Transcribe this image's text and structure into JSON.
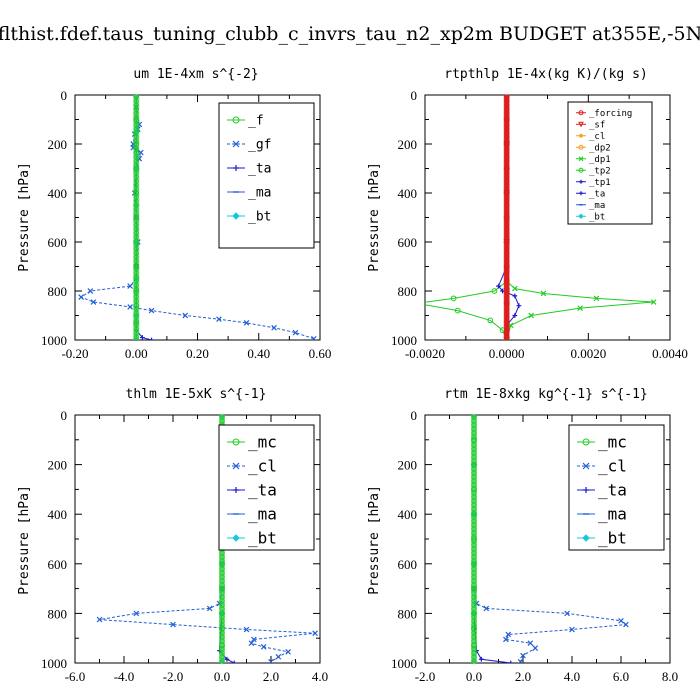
{
  "figure_title": "flthist.fdef.taus_tuning_clubb_c_invrs_tau_n2_xp2m  BUDGET at355E,-5N",
  "colors": {
    "green": "#22cc22",
    "blue": "#1f5fd6",
    "navy": "#1a1acc",
    "cyan": "#16c8d8",
    "red": "#e01a1a",
    "orange": "#f0a020"
  },
  "chart_data": [
    {
      "type": "line",
      "title": "um   1E-4xm s^{-2}",
      "ylabel": "Pressure [hPa]",
      "xlim": [
        -0.2,
        0.6
      ],
      "ylim": [
        1000,
        0
      ],
      "xticks": [
        "-0.20",
        "0.00",
        "0.20",
        "0.40",
        "0.60"
      ],
      "xtick_values": [
        -0.2,
        0.0,
        0.2,
        0.4,
        0.6
      ],
      "yticks": [
        "0",
        "200",
        "400",
        "600",
        "800",
        "1000"
      ],
      "legend_position": "top-right",
      "series": [
        {
          "name": "_f",
          "color": "#22cc22",
          "marker": "circle",
          "x": [
            0,
            0,
            0,
            0,
            0,
            0,
            0,
            0,
            0,
            0,
            0,
            0
          ],
          "y": [
            0,
            100,
            200,
            300,
            400,
            500,
            600,
            700,
            800,
            860,
            930,
            1000
          ]
        },
        {
          "name": "_gf",
          "color": "#1f5fd6",
          "marker": "x",
          "style": "dash",
          "x": [
            0.0,
            0.0,
            0.01,
            0.005,
            -0.005,
            -0.01,
            -0.01,
            0.0,
            0.015,
            0.01,
            0.0,
            -0.005,
            0.0,
            0.005,
            0.0,
            0.0,
            -0.02,
            -0.15,
            -0.18,
            -0.14,
            -0.02,
            0.05,
            0.16,
            0.27,
            0.36,
            0.45,
            0.52,
            0.58
          ],
          "y": [
            0,
            50,
            120,
            140,
            160,
            200,
            215,
            225,
            235,
            260,
            300,
            400,
            500,
            600,
            700,
            750,
            780,
            800,
            825,
            845,
            865,
            880,
            900,
            915,
            930,
            950,
            970,
            995
          ]
        },
        {
          "name": "_ta",
          "color": "#1a1acc",
          "marker": "plus",
          "x": [
            0,
            0,
            0,
            0,
            0,
            0,
            0,
            0,
            0.02,
            0.05
          ],
          "y": [
            0,
            150,
            300,
            450,
            600,
            750,
            900,
            960,
            990,
            1000
          ]
        },
        {
          "name": "_ma",
          "color": "#1f5fd6",
          "marker": "dash",
          "x": [
            0,
            0,
            0,
            0,
            0,
            0,
            0,
            0
          ],
          "y": [
            0,
            150,
            300,
            450,
            600,
            750,
            900,
            1000
          ]
        },
        {
          "name": "_bt",
          "color": "#16c8d8",
          "marker": "diamond",
          "x": [
            0,
            0,
            0,
            0,
            0,
            0,
            0,
            0
          ],
          "y": [
            0,
            150,
            300,
            450,
            600,
            750,
            900,
            1000
          ]
        }
      ]
    },
    {
      "type": "line",
      "title": "rtpthlp   1E-4x(kg K)/(kg s)",
      "ylabel": "Pressure [hPa]",
      "xlim": [
        -0.002,
        0.004
      ],
      "ylim": [
        1000,
        0
      ],
      "xticks": [
        "-0.0020",
        "0.0000",
        "0.0020",
        "0.0040"
      ],
      "xtick_values": [
        -0.002,
        0.0,
        0.002,
        0.004
      ],
      "yticks": [
        "0",
        "200",
        "400",
        "600",
        "800",
        "1000"
      ],
      "legend_position": "top-right",
      "series": [
        {
          "name": "_forcing",
          "color": "#e01a1a",
          "marker": "circle",
          "x": [
            0,
            0,
            0,
            0,
            0,
            0,
            0,
            0,
            0,
            0
          ],
          "y": [
            0,
            100,
            200,
            300,
            400,
            500,
            600,
            700,
            850,
            1000
          ]
        },
        {
          "name": "_sf",
          "color": "#e01a1a",
          "marker": "triangle",
          "x": [
            0,
            0,
            0,
            0,
            0,
            0
          ],
          "y": [
            0,
            200,
            400,
            600,
            800,
            1000
          ]
        },
        {
          "name": "_cl",
          "color": "#f0a020",
          "marker": "star",
          "x": [
            0,
            0,
            0,
            0,
            0,
            0
          ],
          "y": [
            0,
            200,
            400,
            600,
            800,
            1000
          ]
        },
        {
          "name": "_dp2",
          "color": "#f0a020",
          "marker": "circle",
          "x": [
            0,
            0,
            0,
            0,
            0,
            0
          ],
          "y": [
            0,
            200,
            400,
            600,
            800,
            1000
          ]
        },
        {
          "name": "_dp1",
          "color": "#22cc22",
          "marker": "x",
          "x": [
            0.0,
            0.0,
            0.0,
            0.0002,
            0.0009,
            0.0022,
            0.0036,
            0.0018,
            0.0006,
            0.0001,
            0.0
          ],
          "y": [
            0,
            500,
            760,
            790,
            810,
            830,
            845,
            870,
            900,
            940,
            1000
          ]
        },
        {
          "name": "_tp2",
          "color": "#22cc22",
          "marker": "circle",
          "x": [
            0.0,
            0.0,
            0.0,
            -0.0003,
            -0.0013,
            -0.0022,
            -0.0012,
            -0.0004,
            -0.0001,
            0.0
          ],
          "y": [
            0,
            500,
            760,
            800,
            830,
            850,
            880,
            920,
            960,
            1000
          ]
        },
        {
          "name": "_tp1",
          "color": "#1a1acc",
          "marker": "plus",
          "x": [
            0.0,
            0.0,
            -0.0002,
            -0.0001,
            0.0002,
            0.0003,
            0.0002,
            0.0,
            0.0
          ],
          "y": [
            0,
            700,
            780,
            800,
            820,
            860,
            900,
            940,
            1000
          ]
        },
        {
          "name": "_ta",
          "color": "#1a1acc",
          "marker": "plus",
          "x": [
            0,
            0,
            0,
            0,
            0,
            0
          ],
          "y": [
            0,
            200,
            400,
            600,
            800,
            1000
          ]
        },
        {
          "name": "_ma",
          "color": "#1f5fd6",
          "marker": "dash",
          "x": [
            0,
            0,
            0,
            0,
            0,
            0
          ],
          "y": [
            0,
            200,
            400,
            600,
            800,
            1000
          ]
        },
        {
          "name": "_bt",
          "color": "#16c8d8",
          "marker": "diamond",
          "x": [
            0,
            0,
            0,
            0,
            0,
            0
          ],
          "y": [
            0,
            200,
            400,
            600,
            800,
            1000
          ]
        }
      ]
    },
    {
      "type": "line",
      "title": "thlm   1E-5xK s^{-1}",
      "ylabel": "Pressure [hPa]",
      "xlim": [
        -6.0,
        4.0
      ],
      "ylim": [
        1000,
        0
      ],
      "xticks": [
        "-6.0",
        "-4.0",
        "-2.0",
        "0.0",
        "2.0",
        "4.0"
      ],
      "xtick_values": [
        -6.0,
        -4.0,
        -2.0,
        0.0,
        2.0,
        4.0
      ],
      "yticks": [
        "0",
        "200",
        "400",
        "600",
        "800",
        "1000"
      ],
      "legend_position": "top-right",
      "series": [
        {
          "name": "_mc",
          "color": "#22cc22",
          "marker": "circle",
          "x": [
            0,
            0,
            0,
            0,
            0,
            0,
            0,
            0,
            0,
            0,
            0,
            0
          ],
          "y": [
            0,
            100,
            200,
            300,
            400,
            500,
            600,
            700,
            800,
            860,
            930,
            1000
          ]
        },
        {
          "name": "_cl",
          "color": "#1f5fd6",
          "marker": "x",
          "style": "dash",
          "x": [
            0.0,
            0.0,
            -0.1,
            -0.5,
            -3.5,
            -5.0,
            -2.0,
            1.0,
            3.8,
            1.3,
            1.2,
            1.7,
            2.7,
            2.3,
            2.0
          ],
          "y": [
            0,
            700,
            760,
            780,
            800,
            825,
            845,
            865,
            880,
            905,
            920,
            935,
            955,
            975,
            995
          ]
        },
        {
          "name": "_ta",
          "color": "#1a1acc",
          "marker": "plus",
          "x": [
            0,
            0,
            0,
            0,
            0,
            -0.1,
            0.2,
            0.5
          ],
          "y": [
            0,
            200,
            400,
            600,
            800,
            950,
            985,
            1000
          ]
        },
        {
          "name": "_ma",
          "color": "#1f5fd6",
          "marker": "dash",
          "x": [
            0,
            0,
            0,
            0,
            0,
            0
          ],
          "y": [
            0,
            200,
            400,
            600,
            800,
            1000
          ]
        },
        {
          "name": "_bt",
          "color": "#16c8d8",
          "marker": "diamond",
          "x": [
            0,
            0,
            0,
            0,
            0,
            0
          ],
          "y": [
            0,
            200,
            400,
            600,
            800,
            1000
          ]
        }
      ]
    },
    {
      "type": "line",
      "title": "rtm   1E-8xkg kg^{-1} s^{-1}",
      "ylabel": "Pressure [hPa]",
      "xlim": [
        -2.0,
        8.0
      ],
      "ylim": [
        1000,
        0
      ],
      "xticks": [
        "-2.0",
        "0.0",
        "2.0",
        "4.0",
        "6.0",
        "8.0"
      ],
      "xtick_values": [
        -2.0,
        0.0,
        2.0,
        4.0,
        6.0,
        8.0
      ],
      "yticks": [
        "0",
        "200",
        "400",
        "600",
        "800",
        "1000"
      ],
      "legend_position": "top-right",
      "series": [
        {
          "name": "_mc",
          "color": "#22cc22",
          "marker": "circle",
          "x": [
            0,
            0,
            0,
            0,
            0,
            0,
            0,
            0,
            0,
            0,
            0,
            0
          ],
          "y": [
            0,
            100,
            200,
            300,
            400,
            500,
            600,
            700,
            800,
            860,
            930,
            1000
          ]
        },
        {
          "name": "_cl",
          "color": "#1f5fd6",
          "marker": "x",
          "style": "dash",
          "x": [
            0.0,
            0.0,
            0.1,
            0.5,
            3.8,
            6.0,
            6.2,
            4.0,
            1.4,
            1.3,
            2.3,
            2.5,
            2.0,
            1.9
          ],
          "y": [
            0,
            700,
            760,
            780,
            800,
            830,
            845,
            865,
            885,
            905,
            920,
            940,
            970,
            995
          ]
        },
        {
          "name": "_ta",
          "color": "#1a1acc",
          "marker": "plus",
          "x": [
            0,
            0,
            0,
            0,
            0,
            0.1,
            0.3,
            1.5
          ],
          "y": [
            0,
            200,
            400,
            600,
            800,
            950,
            985,
            1000
          ]
        },
        {
          "name": "_ma",
          "color": "#1f5fd6",
          "marker": "dash",
          "x": [
            0,
            0,
            0,
            0,
            0,
            0
          ],
          "y": [
            0,
            200,
            400,
            600,
            800,
            1000
          ]
        },
        {
          "name": "_bt",
          "color": "#16c8d8",
          "marker": "diamond",
          "x": [
            0,
            0,
            0,
            0,
            0,
            0
          ],
          "y": [
            0,
            200,
            400,
            600,
            800,
            1000
          ]
        }
      ]
    }
  ]
}
